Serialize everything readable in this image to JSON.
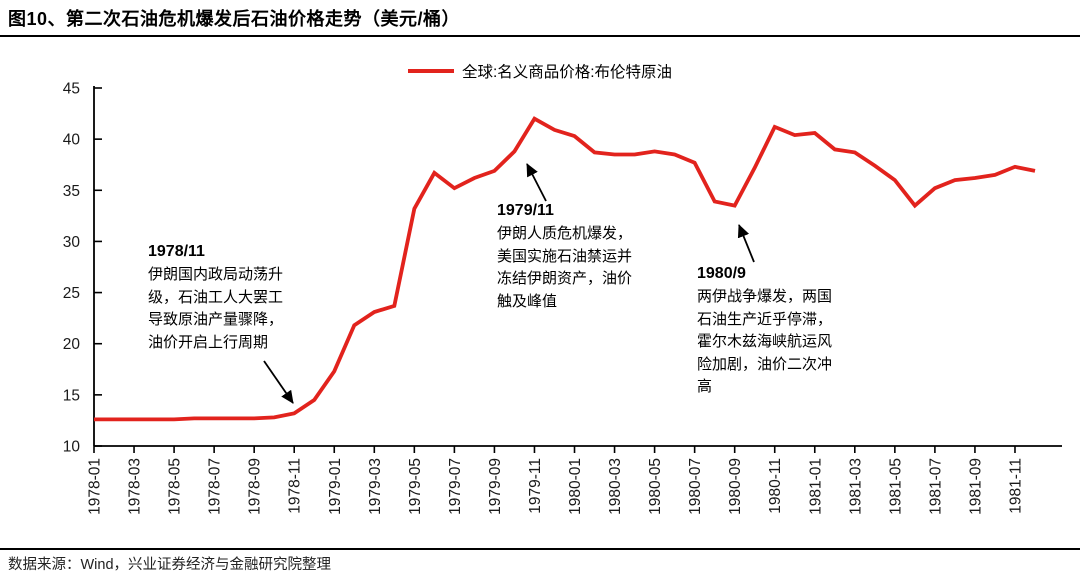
{
  "header": {
    "title": "图10、第二次石油危机爆发后石油价格走势（美元/桶）"
  },
  "legend": {
    "label": "全球:名义商品价格:布伦特原油"
  },
  "footer": {
    "source": "数据来源：Wind，兴业证券经济与金融研究院整理"
  },
  "colors": {
    "series": "#e2231d",
    "axis": "#000000",
    "text": "#1a1a1a"
  },
  "chart_data": {
    "type": "line",
    "title": "图10、第二次石油危机爆发后石油价格走势（美元/桶）",
    "series": [
      {
        "name": "全球:名义商品价格:布伦特原油",
        "color": "#e2231d"
      }
    ],
    "x": [
      "1978-01",
      "1978-02",
      "1978-03",
      "1978-04",
      "1978-05",
      "1978-06",
      "1978-07",
      "1978-08",
      "1978-09",
      "1978-10",
      "1978-11",
      "1978-12",
      "1979-01",
      "1979-02",
      "1979-03",
      "1979-04",
      "1979-05",
      "1979-06",
      "1979-07",
      "1979-08",
      "1979-09",
      "1979-10",
      "1979-11",
      "1979-12",
      "1980-01",
      "1980-02",
      "1980-03",
      "1980-04",
      "1980-05",
      "1980-06",
      "1980-07",
      "1980-08",
      "1980-09",
      "1980-10",
      "1980-11",
      "1980-12",
      "1981-01",
      "1981-02",
      "1981-03",
      "1981-04",
      "1981-05",
      "1981-06",
      "1981-07",
      "1981-08",
      "1981-09",
      "1981-10",
      "1981-11",
      "1981-12"
    ],
    "values": [
      12.6,
      12.6,
      12.6,
      12.6,
      12.6,
      12.7,
      12.7,
      12.7,
      12.7,
      12.8,
      13.2,
      14.5,
      17.3,
      21.8,
      23.1,
      23.7,
      33.2,
      36.7,
      35.2,
      36.2,
      36.9,
      38.8,
      42.0,
      40.9,
      40.3,
      38.7,
      38.5,
      38.5,
      38.8,
      38.5,
      37.7,
      33.9,
      33.5,
      37.2,
      41.2,
      40.4,
      40.6,
      39.0,
      38.7,
      37.4,
      36.0,
      33.5,
      35.2,
      36.0,
      36.2,
      36.5,
      37.3,
      36.9
    ],
    "x_tick_labels": [
      "1978-01",
      "1978-03",
      "1978-05",
      "1978-07",
      "1978-09",
      "1978-11",
      "1979-01",
      "1979-03",
      "1979-05",
      "1979-07",
      "1979-09",
      "1979-11",
      "1980-01",
      "1980-03",
      "1980-05",
      "1980-07",
      "1980-09",
      "1980-11",
      "1981-01",
      "1981-03",
      "1981-05",
      "1981-07",
      "1981-09",
      "1981-11"
    ],
    "y_ticks": [
      10,
      15,
      20,
      25,
      30,
      35,
      40,
      45
    ],
    "ylim": [
      10,
      45
    ],
    "grid": false,
    "legend_position": "top-center",
    "annotations": [
      {
        "title": "1978/11",
        "body": [
          "伊朗国内政局动荡升",
          "级，石油工人大罢工",
          "导致原油产量骤降，",
          "油价开启上行周期"
        ],
        "points_to": "1978-11"
      },
      {
        "title": "1979/11",
        "body": [
          "伊朗人质危机爆发，",
          "美国实施石油禁运并",
          "冻结伊朗资产，油价",
          "触及峰值"
        ],
        "points_to": "1979-11"
      },
      {
        "title": "1980/9",
        "body": [
          "两伊战争爆发，两国",
          "石油生产近乎停滞，",
          "霍尔木兹海峡航运风",
          "险加剧，油价二次冲",
          "高"
        ],
        "points_to": "1980-09"
      }
    ]
  }
}
